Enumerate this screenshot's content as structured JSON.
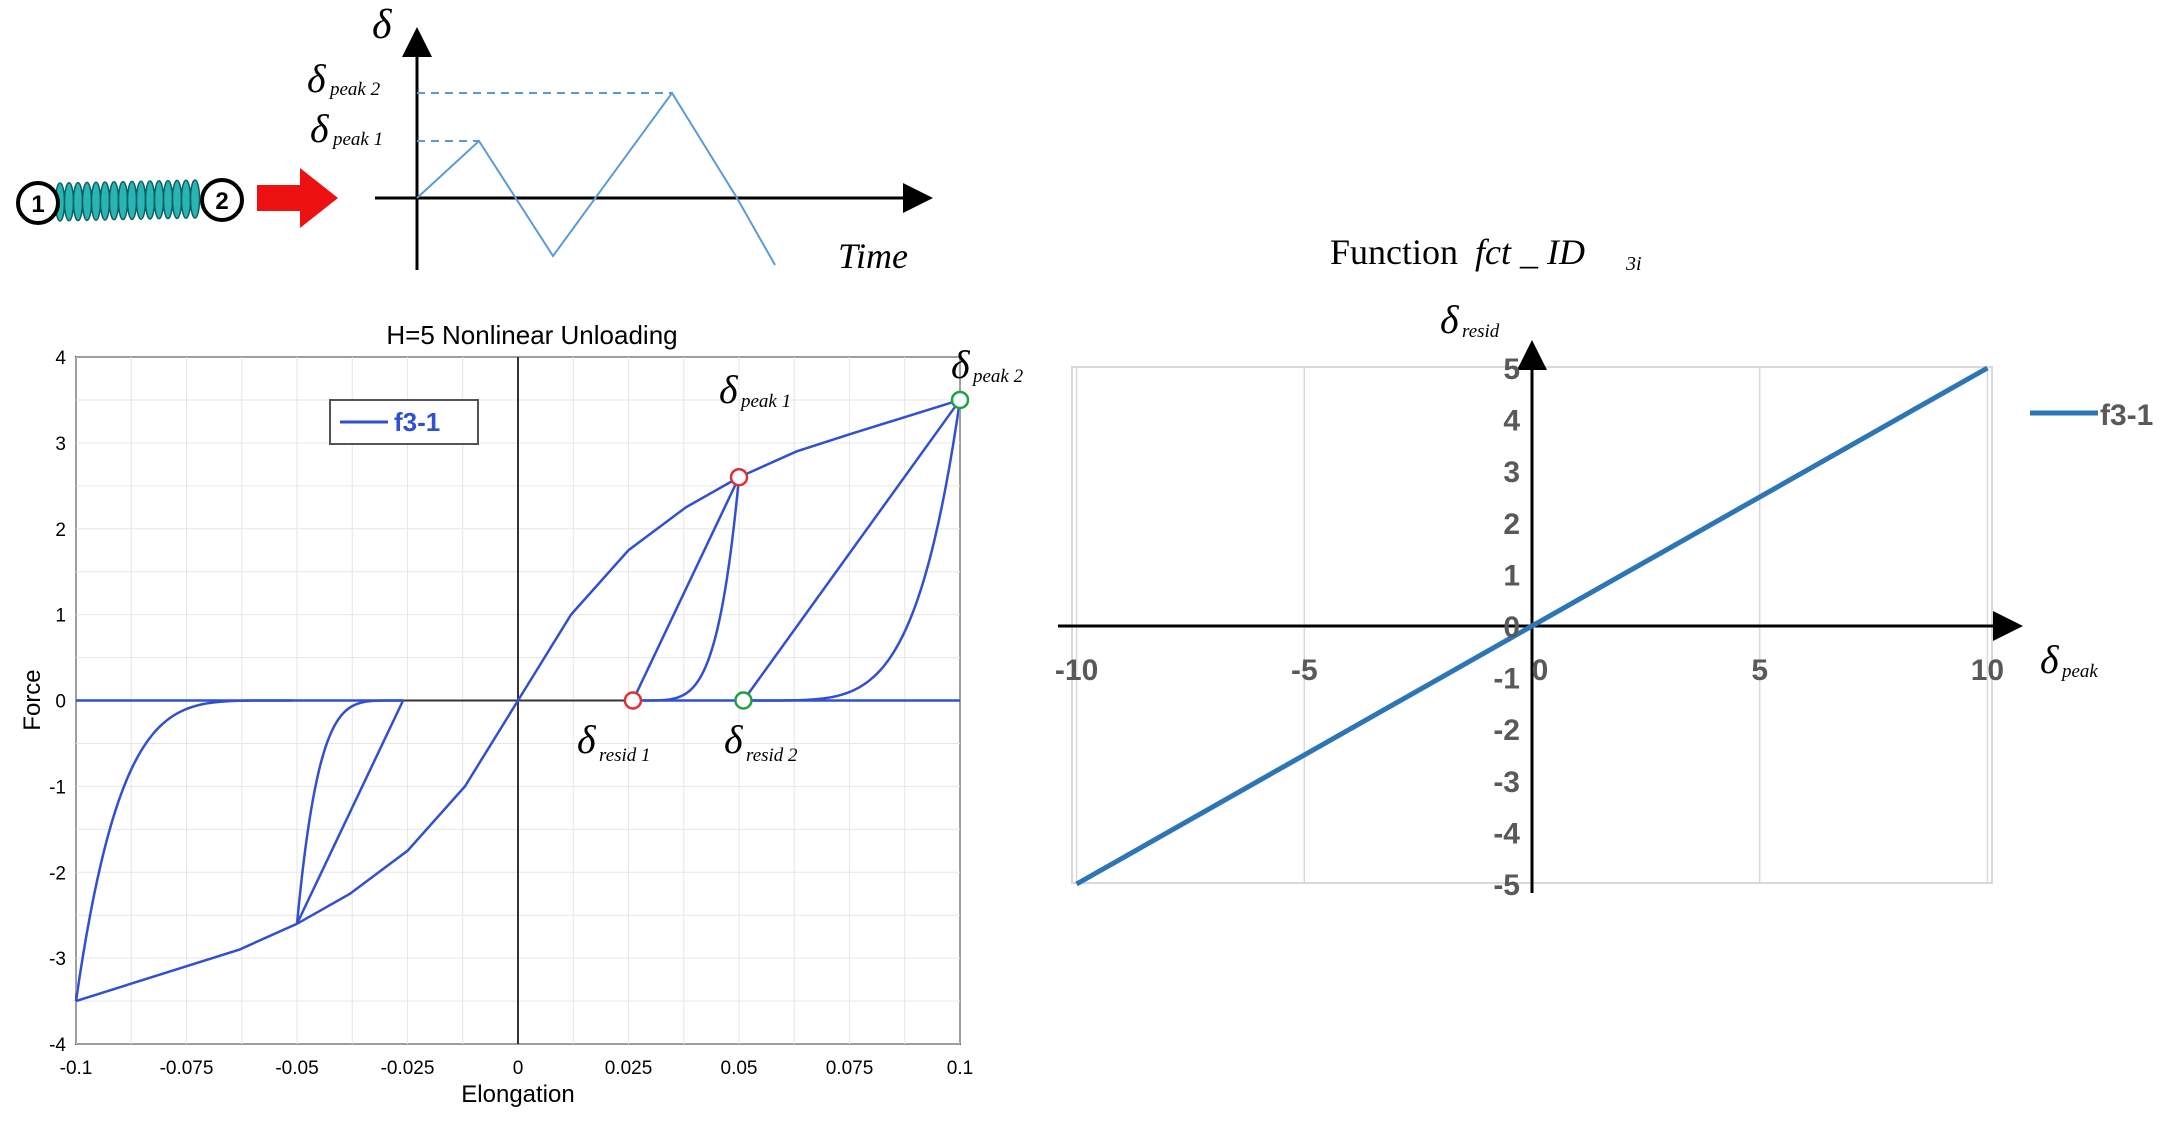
{
  "spring": {
    "node1": "1",
    "node2": "2",
    "spring_color": "#2ab5b5",
    "arrow_color": "#ee1111"
  },
  "time_chart": {
    "y_symbol": "δ",
    "x_label": "Time",
    "peak1_base": "δ",
    "peak1_sub": "peak 1",
    "peak2_base": "δ",
    "peak2_sub": "peak 2",
    "path": {
      "t": [
        0,
        1,
        2,
        3,
        4,
        5
      ],
      "delta": [
        0,
        1,
        -1,
        2,
        0,
        -1
      ]
    },
    "line_color": "#5b9bd5"
  },
  "chart_data": [
    {
      "type": "line",
      "title": "H=5 Nonlinear Unloading",
      "xlabel": "Elongation",
      "ylabel": "Force",
      "xlim": [
        -0.1,
        0.1
      ],
      "ylim": [
        -4,
        4
      ],
      "x_ticks": [
        "-0.1",
        "-0.075",
        "-0.05",
        "-0.025",
        "0",
        "0.025",
        "0.05",
        "0.075",
        "0.1"
      ],
      "y_ticks": [
        "4",
        "3",
        "2",
        "1",
        "0",
        "-1",
        "-2",
        "-3",
        "-4"
      ],
      "grid": true,
      "legend": "top-left",
      "line_color": "#3050d0",
      "series": [
        {
          "name": "f3-1",
          "backbone": {
            "x": [
              -0.1,
              -0.063,
              -0.05,
              -0.038,
              -0.025,
              -0.012,
              0,
              0.012,
              0.025,
              0.038,
              0.05,
              0.063,
              0.075,
              0.1
            ],
            "y": [
              -3.5,
              -2.9,
              -2.6,
              -2.25,
              -1.75,
              -1.0,
              0,
              1.0,
              1.75,
              2.25,
              2.6,
              2.9,
              3.1,
              3.5
            ]
          },
          "reloading_linear": [
            {
              "x": [
                0.026,
                0.05
              ],
              "y": [
                0,
                2.6
              ]
            },
            {
              "x": [
                0.051,
                0.1
              ],
              "y": [
                0,
                3.5
              ]
            },
            {
              "x": [
                -0.05,
                -0.026
              ],
              "y": [
                -2.6,
                0
              ]
            }
          ],
          "unloading_nonlinear": [
            {
              "peak": [
                0.05,
                2.6
              ],
              "resid": 0.026
            },
            {
              "peak": [
                0.1,
                3.5
              ],
              "resid": 0.051
            },
            {
              "peak": [
                -0.05,
                -2.6
              ],
              "resid": -0.026
            },
            {
              "peak": [
                -0.1,
                -3.5
              ],
              "resid": -0.051
            }
          ]
        }
      ],
      "markers": [
        {
          "x": 0.05,
          "y": 2.6,
          "color": "#e03030"
        },
        {
          "x": 0.026,
          "y": 0,
          "color": "#e03030"
        },
        {
          "x": 0.1,
          "y": 3.5,
          "color": "#20a040"
        },
        {
          "x": 0.051,
          "y": 0,
          "color": "#20a040"
        }
      ],
      "annotations": [
        {
          "base": "δ",
          "sub": "peak 1"
        },
        {
          "base": "δ",
          "sub": "peak 2"
        },
        {
          "base": "δ",
          "sub": "resid 1"
        },
        {
          "base": "δ",
          "sub": "resid 2"
        }
      ]
    },
    {
      "type": "line",
      "title_prefix": "Function ",
      "title_fct": "fct _ ID",
      "title_sub": "3i",
      "x_symbol": "δ",
      "x_sub": "peak",
      "y_symbol": "δ",
      "y_sub": "resid",
      "xlim": [
        -10,
        10
      ],
      "ylim": [
        -5,
        5
      ],
      "x_ticks": [
        "-10",
        "-5",
        "0",
        "5",
        "10"
      ],
      "y_ticks": [
        "5",
        "4",
        "3",
        "2",
        "1",
        "0",
        "-1",
        "-2",
        "-3",
        "-4",
        "-5"
      ],
      "grid": true,
      "legend": "right",
      "line_color": "#2e75b6",
      "series": [
        {
          "name": "f3-1",
          "x": [
            -10,
            10
          ],
          "y": [
            -5,
            5
          ]
        }
      ]
    }
  ]
}
